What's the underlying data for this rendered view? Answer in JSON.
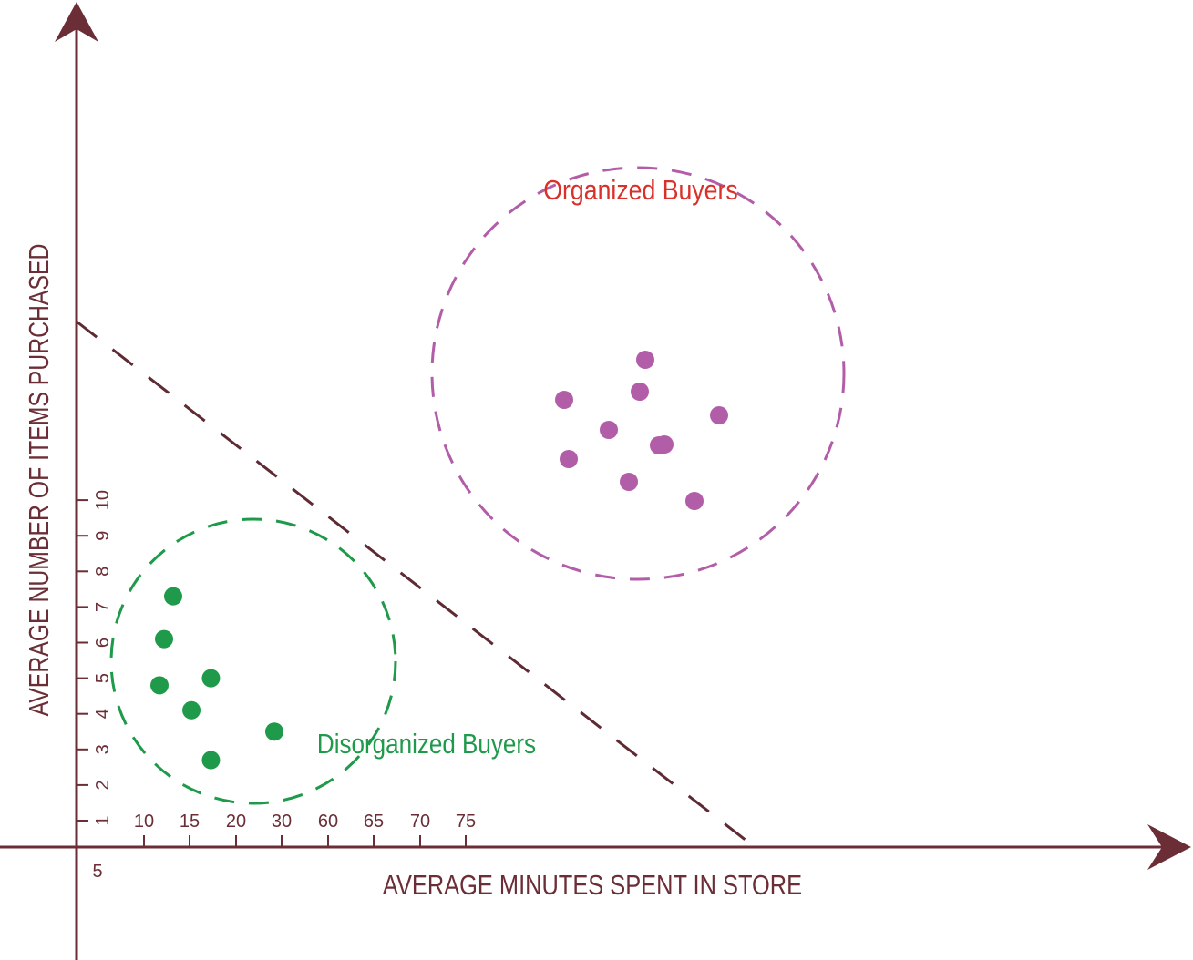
{
  "chart_data": {
    "type": "scatter",
    "xlabel": "AVERAGE MINUTES SPENT IN STORE",
    "ylabel": "AVERAGE NUMBER OF ITEMS PURCHASED",
    "x_ticks": [
      "5",
      "10",
      "15",
      "20",
      "30",
      "60",
      "65",
      "70",
      "75"
    ],
    "y_ticks": [
      "1",
      "2",
      "3",
      "4",
      "5",
      "6",
      "7",
      "8",
      "9",
      "10"
    ],
    "grid": false,
    "series": [
      {
        "name": "Disorganized Buyers",
        "color": "#1e9a4a",
        "points": [
          {
            "x": 13.2,
            "y": 7.3
          },
          {
            "x": 12.2,
            "y": 6.1
          },
          {
            "x": 11.7,
            "y": 4.8
          },
          {
            "x": 17.3,
            "y": 5.0
          },
          {
            "x": 15.2,
            "y": 4.1
          },
          {
            "x": 17.3,
            "y": 2.7
          },
          {
            "x": 28.4,
            "y": 3.5
          }
        ]
      },
      {
        "name": "Organized Buyers",
        "color": "#b25da8",
        "points": []
      }
    ]
  },
  "colors": {
    "axis": "#6b2e36",
    "boundary": "#5e2a33",
    "organized": "#b25da8",
    "disorganized": "#1e9a4a",
    "organized_label": "#d9302a",
    "disorganized_label": "#1e9a4a"
  }
}
